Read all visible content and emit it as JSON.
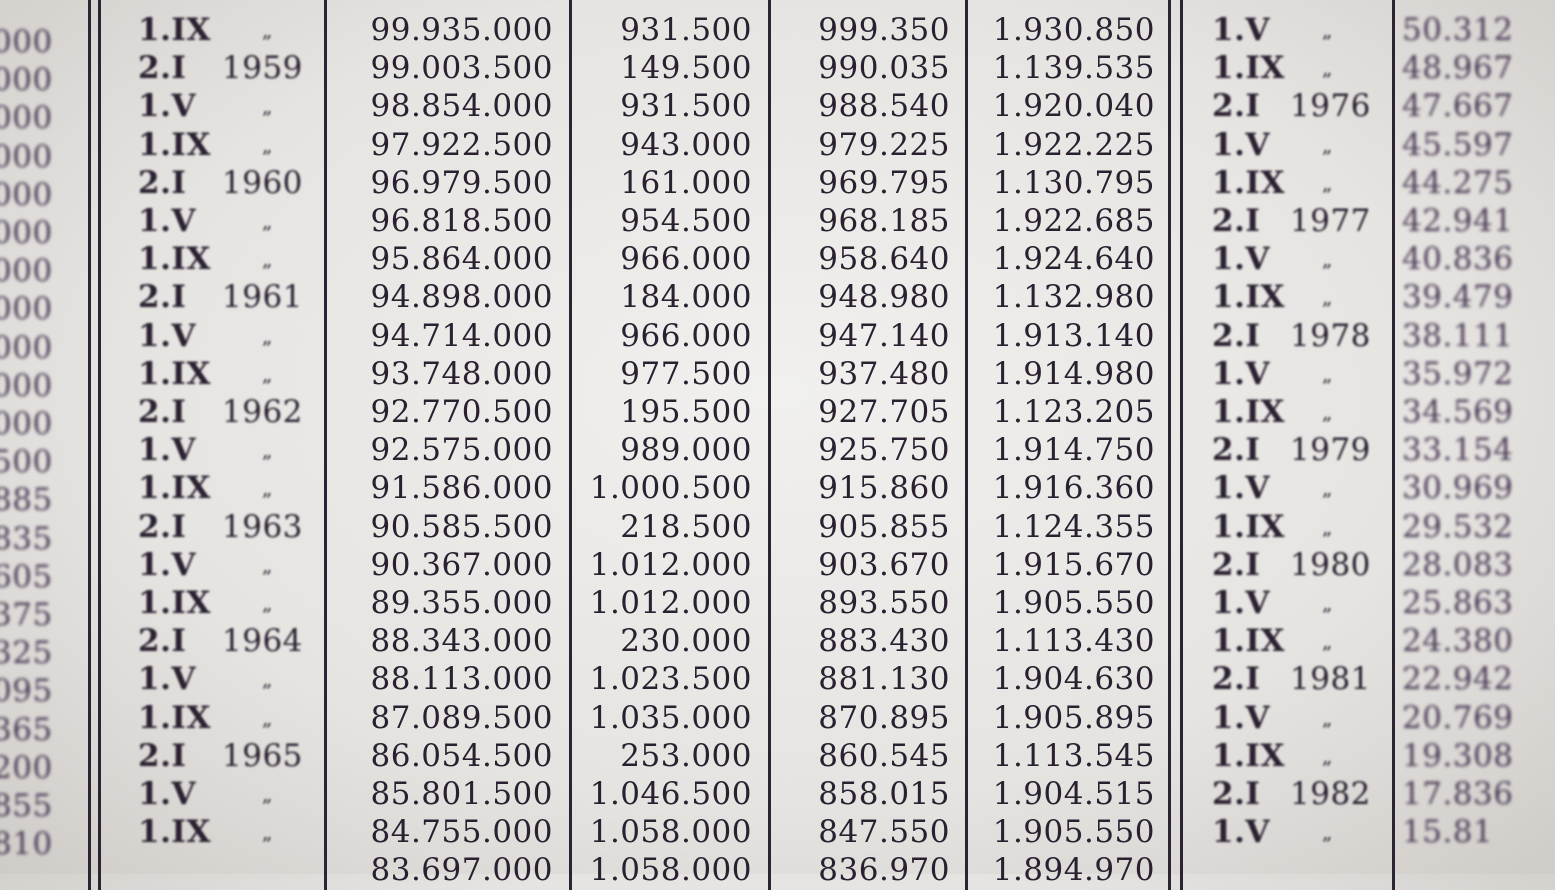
{
  "left_fragment": [
    "000",
    "000",
    "000",
    "000",
    "000",
    "000",
    "000",
    "000",
    "000",
    "000",
    "000",
    "500",
    "885",
    "835",
    "605",
    "375",
    "325",
    "095",
    "365",
    "200",
    "855",
    "810"
  ],
  "rows": [
    {
      "date": "1.IX",
      "year": "„",
      "c1": "99.935.000",
      "c2": "931.500",
      "c3": "999.350",
      "c4": "1.930.850"
    },
    {
      "date": "2.I",
      "year": "1959",
      "c1": "99.003.500",
      "c2": "149.500",
      "c3": "990.035",
      "c4": "1.139.535"
    },
    {
      "date": "1.V",
      "year": "„",
      "c1": "98.854.000",
      "c2": "931.500",
      "c3": "988.540",
      "c4": "1.920.040"
    },
    {
      "date": "1.IX",
      "year": "„",
      "c1": "97.922.500",
      "c2": "943.000",
      "c3": "979.225",
      "c4": "1.922.225"
    },
    {
      "date": "2.I",
      "year": "1960",
      "c1": "96.979.500",
      "c2": "161.000",
      "c3": "969.795",
      "c4": "1.130.795"
    },
    {
      "date": "1.V",
      "year": "„",
      "c1": "96.818.500",
      "c2": "954.500",
      "c3": "968.185",
      "c4": "1.922.685"
    },
    {
      "date": "1.IX",
      "year": "„",
      "c1": "95.864.000",
      "c2": "966.000",
      "c3": "958.640",
      "c4": "1.924.640"
    },
    {
      "date": "2.I",
      "year": "1961",
      "c1": "94.898.000",
      "c2": "184.000",
      "c3": "948.980",
      "c4": "1.132.980"
    },
    {
      "date": "1.V",
      "year": "„",
      "c1": "94.714.000",
      "c2": "966.000",
      "c3": "947.140",
      "c4": "1.913.140"
    },
    {
      "date": "1.IX",
      "year": "„",
      "c1": "93.748.000",
      "c2": "977.500",
      "c3": "937.480",
      "c4": "1.914.980"
    },
    {
      "date": "2.I",
      "year": "1962",
      "c1": "92.770.500",
      "c2": "195.500",
      "c3": "927.705",
      "c4": "1.123.205"
    },
    {
      "date": "1.V",
      "year": "„",
      "c1": "92.575.000",
      "c2": "989.000",
      "c3": "925.750",
      "c4": "1.914.750"
    },
    {
      "date": "1.IX",
      "year": "„",
      "c1": "91.586.000",
      "c2": "1.000.500",
      "c3": "915.860",
      "c4": "1.916.360"
    },
    {
      "date": "2.I",
      "year": "1963",
      "c1": "90.585.500",
      "c2": "218.500",
      "c3": "905.855",
      "c4": "1.124.355"
    },
    {
      "date": "1.V",
      "year": "„",
      "c1": "90.367.000",
      "c2": "1.012.000",
      "c3": "903.670",
      "c4": "1.915.670"
    },
    {
      "date": "1.IX",
      "year": "„",
      "c1": "89.355.000",
      "c2": "1.012.000",
      "c3": "893.550",
      "c4": "1.905.550"
    },
    {
      "date": "2.I",
      "year": "1964",
      "c1": "88.343.000",
      "c2": "230.000",
      "c3": "883.430",
      "c4": "1.113.430"
    },
    {
      "date": "1.V",
      "year": "„",
      "c1": "88.113.000",
      "c2": "1.023.500",
      "c3": "881.130",
      "c4": "1.904.630"
    },
    {
      "date": "1.IX",
      "year": "„",
      "c1": "87.089.500",
      "c2": "1.035.000",
      "c3": "870.895",
      "c4": "1.905.895"
    },
    {
      "date": "2.I",
      "year": "1965",
      "c1": "86.054.500",
      "c2": "253.000",
      "c3": "860.545",
      "c4": "1.113.545"
    },
    {
      "date": "1.V",
      "year": "„",
      "c1": "85.801.500",
      "c2": "1.046.500",
      "c3": "858.015",
      "c4": "1.904.515"
    },
    {
      "date": "1.IX",
      "year": "„",
      "c1": "84.755.000",
      "c2": "1.058.000",
      "c3": "847.550",
      "c4": "1.905.550"
    },
    {
      "date": "",
      "year": "",
      "c1": "83.697.000",
      "c2": "1.058.000",
      "c3": "836.970",
      "c4": "1.894.970"
    }
  ],
  "right_rows": [
    {
      "date": "1.V",
      "year": "„",
      "value": "50.312"
    },
    {
      "date": "1.IX",
      "year": "„",
      "value": "48.967"
    },
    {
      "date": "2.I",
      "year": "1976",
      "value": "47.667"
    },
    {
      "date": "1.V",
      "year": "„",
      "value": "45.597"
    },
    {
      "date": "1.IX",
      "year": "„",
      "value": "44.275"
    },
    {
      "date": "2.I",
      "year": "1977",
      "value": "42.941"
    },
    {
      "date": "1.V",
      "year": "„",
      "value": "40.836"
    },
    {
      "date": "1.IX",
      "year": "„",
      "value": "39.479"
    },
    {
      "date": "2.I",
      "year": "1978",
      "value": "38.111"
    },
    {
      "date": "1.V",
      "year": "„",
      "value": "35.972"
    },
    {
      "date": "1.IX",
      "year": "„",
      "value": "34.569"
    },
    {
      "date": "2.I",
      "year": "1979",
      "value": "33.154"
    },
    {
      "date": "1.V",
      "year": "„",
      "value": "30.969"
    },
    {
      "date": "1.IX",
      "year": "„",
      "value": "29.532"
    },
    {
      "date": "2.I",
      "year": "1980",
      "value": "28.083"
    },
    {
      "date": "1.V",
      "year": "„",
      "value": "25.863"
    },
    {
      "date": "1.IX",
      "year": "„",
      "value": "24.380"
    },
    {
      "date": "2.I",
      "year": "1981",
      "value": "22.942"
    },
    {
      "date": "1.V",
      "year": "„",
      "value": "20.769"
    },
    {
      "date": "1.IX",
      "year": "„",
      "value": "19.308"
    },
    {
      "date": "2.I",
      "year": "1982",
      "value": "17.836"
    },
    {
      "date": "1.V",
      "year": "„",
      "value": "15.81"
    }
  ]
}
